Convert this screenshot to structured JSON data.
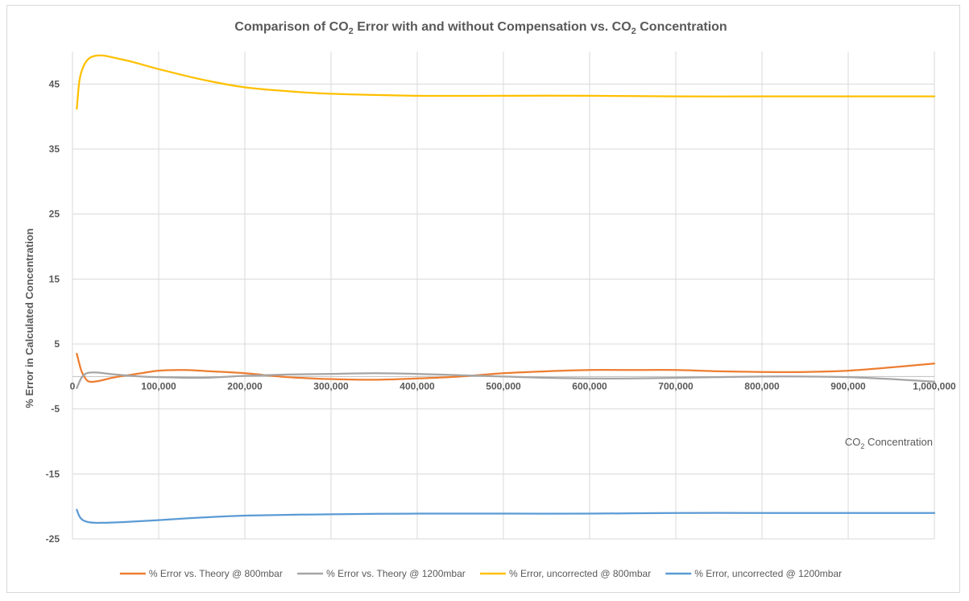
{
  "chart_data": {
    "type": "line",
    "title": {
      "prefix": "Comparison of CO",
      "sub1": "2",
      "middle": " Error with and without Compensation vs. CO",
      "sub2": "2",
      "suffix": " Concentration"
    },
    "xlabel": {
      "prefix": "CO",
      "sub": "2",
      "suffix": " Concentration"
    },
    "ylabel": "% Error in Calculated Concentration",
    "xlim": [
      0,
      1000000
    ],
    "ylim": [
      -25,
      50
    ],
    "y_ticks": [
      45,
      35,
      25,
      15,
      5,
      -5,
      -15,
      -25
    ],
    "y_tick_labels": [
      "45",
      "35",
      "25",
      "15",
      "5",
      "-5",
      "-15",
      "-25"
    ],
    "x_ticks": [
      100000,
      200000,
      300000,
      400000,
      500000,
      600000,
      700000,
      800000,
      900000,
      1000000
    ],
    "x_tick_labels": [
      "100,000",
      "200,000",
      "300,000",
      "400,000",
      "500,000",
      "600,000",
      "700,000",
      "800,000",
      "900,000",
      "1,000,000"
    ],
    "origin_label": "0",
    "grid": true,
    "legend_position": "bottom",
    "series": [
      {
        "name": "% Error vs. Theory @ 800mbar",
        "color": "#ED7D31",
        "x": [
          5000,
          10000,
          15000,
          20000,
          30000,
          50000,
          80000,
          100000,
          130000,
          160000,
          200000,
          250000,
          300000,
          350000,
          400000,
          450000,
          500000,
          550000,
          600000,
          650000,
          700000,
          750000,
          800000,
          850000,
          900000,
          950000,
          1000000
        ],
        "y": [
          3.5,
          1.0,
          -0.3,
          -0.8,
          -0.7,
          -0.1,
          0.5,
          0.9,
          1.0,
          0.8,
          0.5,
          -0.1,
          -0.4,
          -0.5,
          -0.3,
          0.0,
          0.5,
          0.8,
          1.0,
          1.0,
          1.0,
          0.8,
          0.7,
          0.7,
          0.9,
          1.4,
          2.0
        ]
      },
      {
        "name": "% Error vs. Theory @ 1200mbar",
        "color": "#A5A5A5",
        "x": [
          5000,
          10000,
          15000,
          20000,
          30000,
          50000,
          80000,
          100000,
          150000,
          200000,
          250000,
          300000,
          350000,
          400000,
          450000,
          500000,
          550000,
          600000,
          650000,
          700000,
          750000,
          800000,
          850000,
          900000,
          950000,
          1000000
        ],
        "y": [
          -1.8,
          -0.3,
          0.4,
          0.6,
          0.6,
          0.3,
          0.0,
          -0.1,
          -0.2,
          0.1,
          0.3,
          0.4,
          0.5,
          0.4,
          0.2,
          0.0,
          -0.2,
          -0.3,
          -0.3,
          -0.2,
          -0.1,
          0.0,
          0.0,
          -0.1,
          -0.4,
          -0.8
        ]
      },
      {
        "name": "% Error, uncorrected @ 800mbar",
        "color": "#FFC000",
        "x": [
          5000,
          8000,
          12000,
          18000,
          25000,
          35000,
          50000,
          70000,
          100000,
          150000,
          200000,
          250000,
          300000,
          400000,
          500000,
          600000,
          700000,
          800000,
          900000,
          1000000
        ],
        "y": [
          41.2,
          45.5,
          47.5,
          48.8,
          49.3,
          49.4,
          49.0,
          48.4,
          47.3,
          45.7,
          44.5,
          43.9,
          43.5,
          43.2,
          43.2,
          43.2,
          43.1,
          43.1,
          43.1,
          43.1
        ]
      },
      {
        "name": "% Error, uncorrected @ 1200mbar",
        "color": "#5B9BD5",
        "x": [
          5000,
          8000,
          12000,
          18000,
          25000,
          40000,
          60000,
          100000,
          150000,
          200000,
          300000,
          400000,
          500000,
          600000,
          700000,
          800000,
          900000,
          1000000
        ],
        "y": [
          -20.5,
          -21.5,
          -22.1,
          -22.4,
          -22.5,
          -22.5,
          -22.4,
          -22.1,
          -21.7,
          -21.4,
          -21.2,
          -21.1,
          -21.1,
          -21.1,
          -21.0,
          -21.0,
          -21.0,
          -21.0
        ]
      }
    ]
  }
}
